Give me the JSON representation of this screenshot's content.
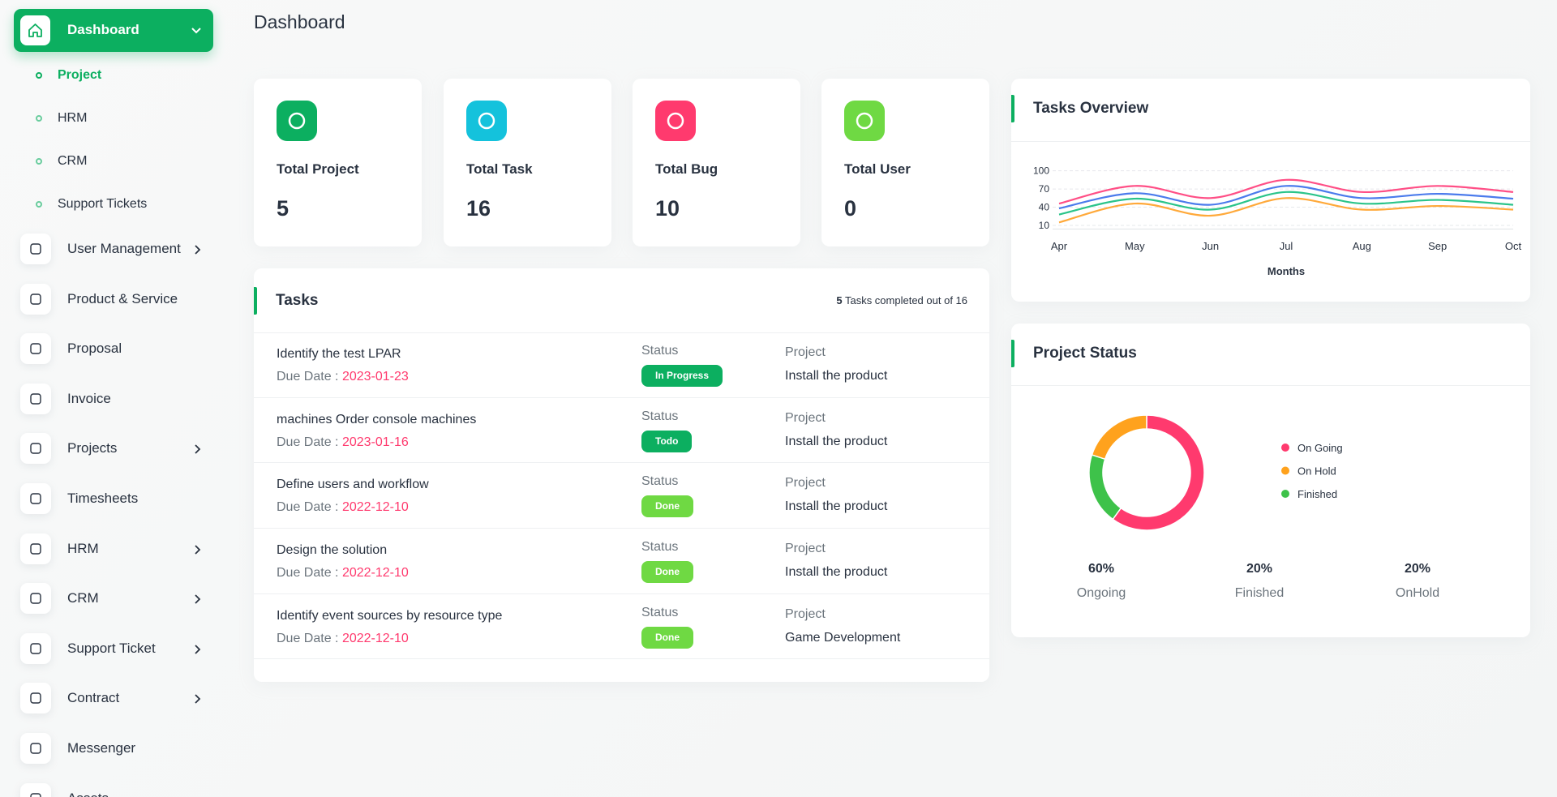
{
  "sidebar": {
    "active": "Dashboard",
    "submenu": [
      {
        "label": "Project",
        "active": true
      },
      {
        "label": "HRM",
        "active": false
      },
      {
        "label": "CRM",
        "active": false
      },
      {
        "label": "Support Tickets",
        "active": false
      }
    ],
    "items": [
      {
        "label": "User Management",
        "expandable": true
      },
      {
        "label": "Product & Service",
        "expandable": false
      },
      {
        "label": "Proposal",
        "expandable": false
      },
      {
        "label": "Invoice",
        "expandable": false
      },
      {
        "label": "Projects",
        "expandable": true
      },
      {
        "label": "Timesheets",
        "expandable": false
      },
      {
        "label": "HRM",
        "expandable": true
      },
      {
        "label": "CRM",
        "expandable": true
      },
      {
        "label": "Support Ticket",
        "expandable": true
      },
      {
        "label": "Contract",
        "expandable": true
      },
      {
        "label": "Messenger",
        "expandable": false
      },
      {
        "label": "Assets",
        "expandable": false
      }
    ]
  },
  "header": {
    "title": "Dashboard"
  },
  "stats": [
    {
      "label": "Total Project",
      "value": 5,
      "color": "#0caf60"
    },
    {
      "label": "Total Task",
      "value": 16,
      "color": "#14c2dc"
    },
    {
      "label": "Total Bug",
      "value": 10,
      "color": "#ff3a6e"
    },
    {
      "label": "Total User",
      "value": 0,
      "color": "#6fd943"
    }
  ],
  "tasks": {
    "title": "Tasks",
    "completed": 5,
    "summary": "Tasks completed out of 16",
    "rows": [
      {
        "name": "Identify the test LPAR",
        "due_label": "Due Date :",
        "due": "2023-01-23",
        "status_label": "Status",
        "status": "In Progress",
        "color": "#0caf60",
        "project_label": "Project",
        "project": "Install the product"
      },
      {
        "name": "machines Order console machines",
        "due_label": "Due Date :",
        "due": "2023-01-16",
        "status_label": "Status",
        "status": "Todo",
        "color": "#0caf60",
        "project_label": "Project",
        "project": "Install the product"
      },
      {
        "name": "Define users and workflow",
        "due_label": "Due Date :",
        "due": "2022-12-10",
        "status_label": "Status",
        "status": "Done",
        "color": "#6fd943",
        "project_label": "Project",
        "project": "Install the product"
      },
      {
        "name": "Design the solution",
        "due_label": "Due Date :",
        "due": "2022-12-10",
        "status_label": "Status",
        "status": "Done",
        "color": "#6fd943",
        "project_label": "Project",
        "project": "Install the product"
      },
      {
        "name": "Identify event sources by resource type",
        "due_label": "Due Date :",
        "due": "2022-12-10",
        "status_label": "Status",
        "status": "Done",
        "color": "#6fd943",
        "project_label": "Project",
        "project": "Game Development"
      }
    ]
  },
  "chart_data": [
    {
      "type": "line",
      "title": "Tasks Overview",
      "x_label": "Months",
      "categories": [
        "Apr",
        "May",
        "Jun",
        "Jul",
        "Aug",
        "Sep",
        "Oct"
      ],
      "series": [
        {
          "color": "#ff4f86",
          "values": [
            46,
            75,
            55,
            85,
            65,
            75,
            65
          ]
        },
        {
          "color": "#4b7bec",
          "values": [
            38,
            63,
            44,
            75,
            55,
            62,
            54
          ]
        },
        {
          "color": "#2bc48a",
          "values": [
            28,
            54,
            36,
            65,
            46,
            52,
            44
          ]
        },
        {
          "color": "#ffa93a",
          "values": [
            15,
            46,
            26,
            55,
            36,
            42,
            36
          ]
        }
      ],
      "ylim": [
        0,
        100
      ],
      "yticks": [
        10,
        40,
        70,
        100
      ],
      "grid": true
    },
    {
      "type": "pie",
      "title": "Project Status",
      "categories": [
        "On Going",
        "On Hold",
        "Finished"
      ],
      "values": [
        60,
        20,
        20
      ],
      "colors": [
        "#ff3a6e",
        "#ffa21d",
        "#3ec24a"
      ],
      "donut": true,
      "legend": "right",
      "summary": [
        {
          "percent": "60%",
          "label": "Ongoing"
        },
        {
          "percent": "20%",
          "label": "Finished"
        },
        {
          "percent": "20%",
          "label": "OnHold"
        }
      ]
    }
  ]
}
